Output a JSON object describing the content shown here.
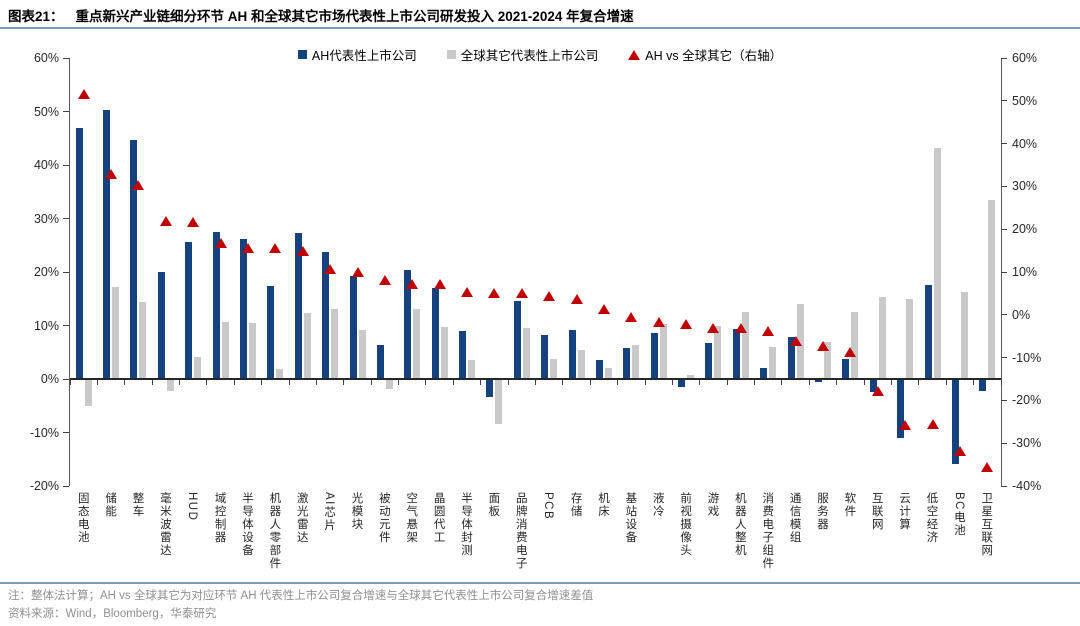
{
  "header": {
    "figure_label": "图表21：",
    "title": "重点新兴产业链细分环节 AH 和全球其它市场代表性上市公司研发投入 2021-2024 年复合增速"
  },
  "footer": {
    "note": "注：整体法计算；AH vs 全球其它为对应环节 AH 代表性上市公司复合增速与全球其它代表性上市公司复合增速差值",
    "source": "资料来源：Wind，Bloomberg，华泰研究"
  },
  "colors": {
    "ah_bar": "#15427c",
    "global_bar": "#c9c9c9",
    "diff_triangle": "#c00000",
    "rule_line": "#7d9cb8",
    "axis_line": "#595959",
    "note_text": "#8f8f8f"
  },
  "chart_data": {
    "type": "bar",
    "subtype": "dual-axis bar + triangle scatter",
    "title": "重点新兴产业链细分环节 AH 和全球其它市场代表性上市公司研发投入 2021-2024 年复合增速",
    "grid": false,
    "legend_position": "top-center",
    "left_axis": {
      "min": -20,
      "max": 60,
      "step": 10,
      "unit": "%"
    },
    "right_axis": {
      "min": -40,
      "max": 60,
      "step": 10,
      "unit": "%"
    },
    "categories": [
      "固态电池",
      "储能",
      "整车",
      "毫米波雷达",
      "HUD",
      "域控制器",
      "半导体设备",
      "机器人零部件",
      "激光雷达",
      "AI芯片",
      "光模块",
      "被动元件",
      "空气悬架",
      "晶圆代工",
      "半导体封测",
      "面板",
      "品牌消费电子",
      "PCB",
      "存储",
      "机床",
      "基站设备",
      "液冷",
      "前视摄像头",
      "游戏",
      "机器人整机",
      "消费电子组件",
      "通信模组",
      "服务器",
      "软件",
      "互联网",
      "云计算",
      "低空经济",
      "BC电池",
      "卫星互联网"
    ],
    "series": [
      {
        "name": "AH代表性上市公司",
        "type": "bar",
        "axis": "left",
        "color": "#15427c",
        "values": [
          46.9,
          50.2,
          44.6,
          20.0,
          25.7,
          27.4,
          26.1,
          17.3,
          27.2,
          23.8,
          19.2,
          6.4,
          20.3,
          17.0,
          9.0,
          -3.1,
          14.5,
          8.2,
          9.1,
          3.5,
          5.8,
          8.6,
          -1.4,
          6.8,
          9.4,
          2.1,
          7.9,
          -0.4,
          3.8,
          -2.3,
          -10.8,
          17.5,
          -15.7,
          -2.0
        ]
      },
      {
        "name": "全球其它代表性上市公司",
        "type": "bar",
        "axis": "left",
        "color": "#c9c9c9",
        "values": [
          -4.8,
          17.2,
          14.3,
          -2.0,
          4.1,
          10.6,
          10.4,
          1.8,
          12.3,
          13.1,
          9.1,
          -1.7,
          13.1,
          9.8,
          3.6,
          -8.2,
          9.5,
          3.8,
          5.5,
          2.1,
          6.4,
          10.3,
          0.8,
          9.9,
          12.6,
          6.0,
          14.0,
          6.9,
          12.6,
          15.4,
          15.0,
          43.1,
          16.2,
          33.5
        ]
      },
      {
        "name": "AH vs 全球其它（右轴）",
        "type": "scatter-triangle",
        "axis": "right",
        "color": "#c00000",
        "values": [
          51.7,
          33.0,
          30.3,
          22.0,
          21.6,
          16.8,
          15.7,
          15.5,
          14.9,
          10.7,
          10.1,
          8.1,
          7.2,
          7.2,
          5.4,
          5.1,
          5.0,
          4.4,
          3.6,
          1.4,
          -0.6,
          -1.7,
          -2.2,
          -3.1,
          -3.2,
          -3.9,
          -6.1,
          -7.3,
          -8.8,
          -17.7,
          -25.8,
          -25.6,
          -31.9,
          -35.5
        ]
      }
    ]
  }
}
